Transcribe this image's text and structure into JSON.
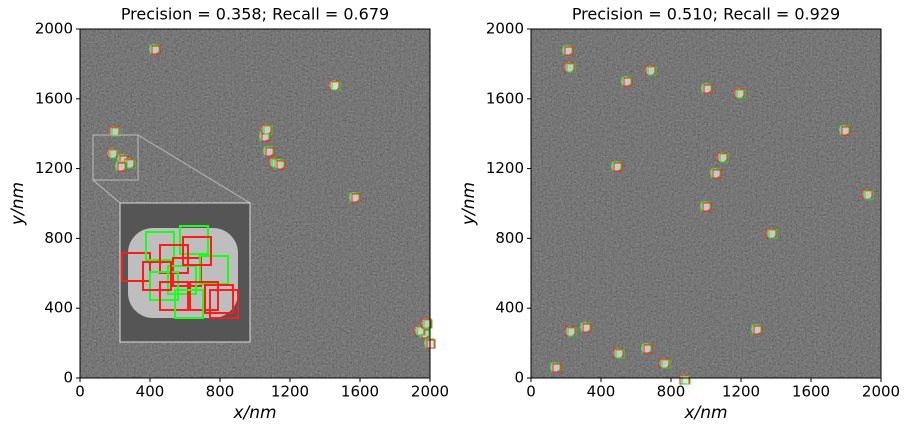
{
  "chart_data": [
    {
      "type": "image",
      "title": "Precision = 0.358; Recall = 0.679",
      "xlabel": "x/nm",
      "ylabel": "y/nm",
      "xlim": [
        0,
        2000
      ],
      "ylim": [
        0,
        2000
      ],
      "xticks": [
        0,
        400,
        800,
        1200,
        1600,
        2000
      ],
      "yticks": [
        0,
        400,
        800,
        1200,
        1600,
        2000
      ]
    },
    {
      "type": "image",
      "title": "Precision = 0.510; Recall = 0.929",
      "xlabel": "x/nm",
      "ylabel": "y/nm",
      "xlim": [
        0,
        2000
      ],
      "ylim": [
        0,
        2000
      ],
      "xticks": [
        0,
        400,
        800,
        1200,
        1600,
        2000
      ],
      "yticks": [
        0,
        400,
        800,
        1200,
        1600,
        2000
      ]
    }
  ]
}
